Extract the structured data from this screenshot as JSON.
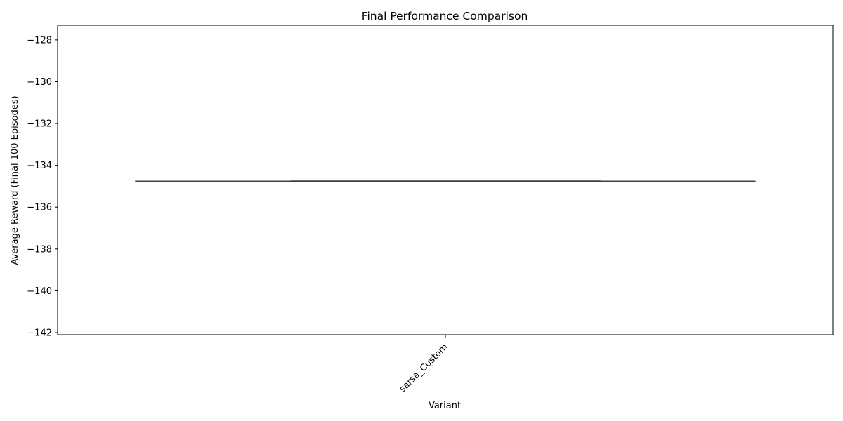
{
  "chart_data": {
    "type": "box",
    "title": "Final Performance Comparison",
    "xlabel": "Variant",
    "ylabel": "Average Reward (Final 100 Episodes)",
    "categories": [
      "sarsa_Custom"
    ],
    "values": [
      -134.76
    ],
    "box": {
      "q1": -134.76,
      "median": -134.76,
      "q3": -134.76,
      "whisker_low": -134.76,
      "whisker_high": -134.76
    },
    "ylim": [
      -142.1,
      -127.3
    ],
    "yticks": [
      -142,
      -140,
      -138,
      -136,
      -134,
      -132,
      -130,
      -128
    ],
    "ytick_labels": [
      "−142",
      "−140",
      "−138",
      "−136",
      "−134",
      "−132",
      "−130",
      "−128"
    ],
    "grid": false,
    "legend": "none",
    "colors": {
      "box_line": "#3f3f3f",
      "axes": "#000000"
    }
  }
}
